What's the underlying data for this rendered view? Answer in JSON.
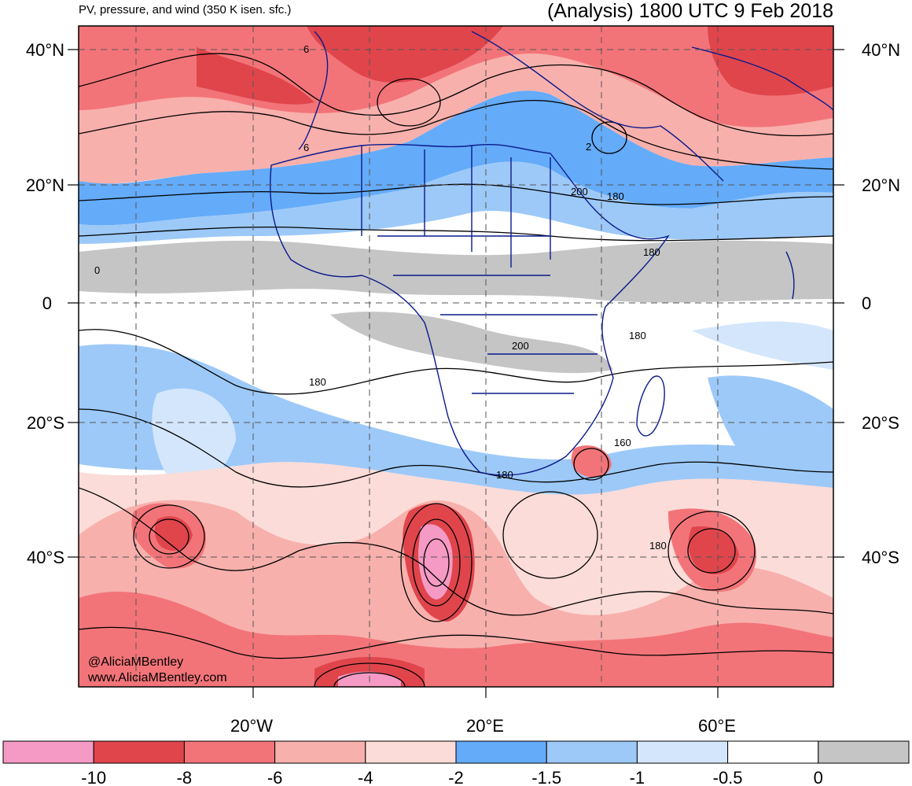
{
  "header": {
    "subtitle": "PV, pressure, and wind (350 K isen. sfc.)",
    "title": "(Analysis) 1800 UTC 9 Feb 2018"
  },
  "map": {
    "lat_labels": [
      "40°N",
      "20°N",
      "0",
      "20°S",
      "40°S"
    ],
    "lon_labels": [
      "20°W",
      "20°E",
      "60°E"
    ],
    "contour_labels": [
      "6",
      "6",
      "2",
      "200",
      "180",
      "180",
      "0",
      "200",
      "180",
      "180",
      "160",
      "180",
      "180"
    ],
    "credit_line1": "@AliciaMBentley",
    "credit_line2": "www.AliciaMBentley.com"
  },
  "colorbar": {
    "labels": [
      "-10",
      "-8",
      "-6",
      "-4",
      "-2",
      "-1.5",
      "-1",
      "-0.5",
      "0"
    ],
    "colors": [
      "#f59ac4",
      "#e0454c",
      "#f27479",
      "#f8b0ac",
      "#fbdcd8",
      "#64abf9",
      "#9dc9f8",
      "#d4e6fb",
      "#ffffff",
      "#c5c5c5"
    ]
  },
  "colors": {
    "map_border": "#000000",
    "country_lines": "#0a1a8c",
    "contours": "#000000"
  }
}
